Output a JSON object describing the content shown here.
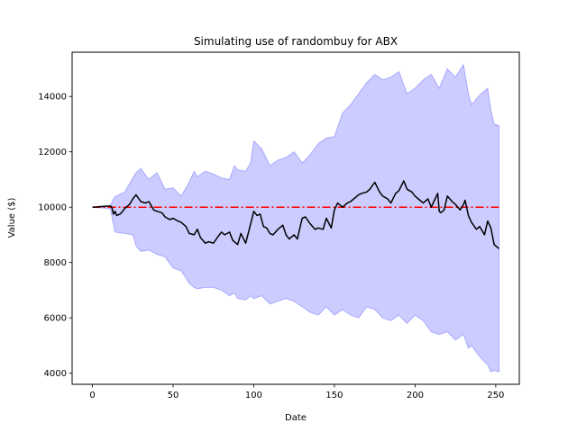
{
  "chart_data": {
    "type": "area",
    "title": "Simulating use of randombuy for ABX",
    "xlabel": "Date",
    "ylabel": "Value ($)",
    "xlim": [
      -12.6,
      264.6
    ],
    "ylim": [
      3600,
      15600
    ],
    "xticks": [
      0,
      50,
      100,
      150,
      200,
      250
    ],
    "yticks": [
      4000,
      6000,
      8000,
      10000,
      12000,
      14000
    ],
    "grid": false,
    "reference_line": {
      "y": 10000,
      "x_range": [
        0,
        252
      ],
      "color": "#ff0000",
      "style": "dash-dot"
    },
    "band": {
      "color": "#0000ff",
      "opacity": 0.2,
      "x": [
        0,
        11,
        13,
        14,
        20,
        25,
        27,
        30,
        35,
        40,
        45,
        50,
        55,
        60,
        63,
        65,
        70,
        75,
        80,
        85,
        88,
        90,
        95,
        98,
        100,
        105,
        110,
        115,
        120,
        125,
        130,
        135,
        140,
        145,
        150,
        155,
        160,
        165,
        170,
        175,
        180,
        185,
        190,
        195,
        200,
        205,
        210,
        215,
        220,
        225,
        230,
        233,
        235,
        240,
        245,
        247,
        249,
        252
      ],
      "upper": [
        10000,
        10050,
        10300,
        10380,
        10550,
        11050,
        11250,
        11400,
        11000,
        11250,
        10650,
        10700,
        10400,
        10900,
        11300,
        11100,
        11300,
        11200,
        11050,
        11000,
        11500,
        11350,
        11300,
        11600,
        12400,
        12100,
        11500,
        11700,
        11800,
        12000,
        11600,
        11900,
        12300,
        12500,
        12550,
        13400,
        13700,
        14100,
        14500,
        14800,
        14600,
        14700,
        14900,
        14100,
        14300,
        14600,
        14800,
        14300,
        15000,
        14700,
        15150,
        14100,
        13700,
        14050,
        14300,
        13500,
        13000,
        12950
      ],
      "lower": [
        10000,
        9950,
        9400,
        9100,
        9050,
        9000,
        8600,
        8400,
        8450,
        8300,
        8200,
        7800,
        7700,
        7250,
        7100,
        7050,
        7100,
        7100,
        7000,
        6800,
        6900,
        6700,
        6650,
        6800,
        6700,
        6800,
        6500,
        6600,
        6700,
        6600,
        6400,
        6200,
        6100,
        6400,
        6100,
        6300,
        6100,
        6000,
        6400,
        6300,
        6000,
        5900,
        6100,
        5800,
        6100,
        5900,
        5500,
        5400,
        5500,
        5200,
        5400,
        4900,
        5000,
        4600,
        4300,
        4050,
        4100,
        4050
      ]
    },
    "series": [
      {
        "color": "#000000",
        "x": [
          0,
          11,
          12,
          13,
          14,
          15,
          17,
          18,
          20,
          23,
          25,
          27,
          30,
          33,
          35,
          38,
          40,
          43,
          45,
          48,
          50,
          53,
          55,
          58,
          60,
          63,
          65,
          67,
          70,
          72,
          75,
          78,
          80,
          82,
          85,
          87,
          90,
          92,
          95,
          97,
          100,
          102,
          104,
          106,
          108,
          110,
          112,
          115,
          118,
          120,
          122,
          125,
          127,
          130,
          132,
          135,
          138,
          140,
          143,
          145,
          148,
          150,
          152,
          155,
          158,
          160,
          162,
          165,
          167,
          170,
          172,
          175,
          178,
          180,
          183,
          185,
          188,
          190,
          193,
          195,
          198,
          200,
          203,
          205,
          208,
          210,
          212,
          214,
          215,
          216,
          218,
          220,
          223,
          225,
          228,
          230,
          231,
          233,
          235,
          238,
          240,
          243,
          245,
          247,
          249,
          252
        ],
        "values": [
          10000,
          10050,
          10000,
          9750,
          9850,
          9700,
          9750,
          9800,
          9950,
          10100,
          10300,
          10450,
          10200,
          10150,
          10200,
          9900,
          9850,
          9800,
          9650,
          9550,
          9600,
          9500,
          9450,
          9300,
          9050,
          9000,
          9200,
          8900,
          8700,
          8750,
          8700,
          8950,
          9100,
          9000,
          9100,
          8800,
          8650,
          9050,
          8700,
          9150,
          9850,
          9700,
          9750,
          9300,
          9250,
          9050,
          9000,
          9200,
          9350,
          9000,
          8850,
          9000,
          8850,
          9600,
          9650,
          9400,
          9200,
          9250,
          9200,
          9600,
          9250,
          9900,
          10150,
          10000,
          10150,
          10200,
          10300,
          10450,
          10500,
          10550,
          10650,
          10900,
          10550,
          10400,
          10300,
          10150,
          10500,
          10600,
          10950,
          10650,
          10550,
          10400,
          10250,
          10150,
          10300,
          10000,
          10250,
          10500,
          9850,
          9800,
          9900,
          10400,
          10200,
          10100,
          9900,
          10100,
          10250,
          9700,
          9450,
          9200,
          9300,
          9000,
          9500,
          9250,
          8650,
          8500
        ]
      }
    ]
  }
}
